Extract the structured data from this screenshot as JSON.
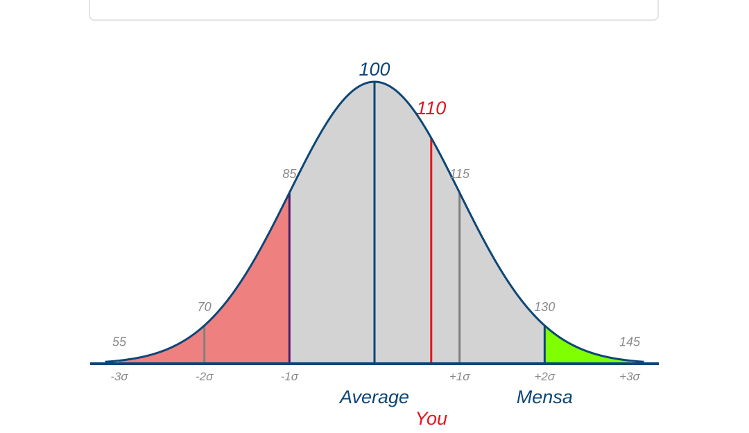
{
  "chart_data": {
    "type": "area",
    "distribution": "normal",
    "mean": 100,
    "sd": 15,
    "xlim": [
      55,
      145
    ],
    "iq_tick_labels": [
      {
        "value": 55,
        "label": "55"
      },
      {
        "value": 70,
        "label": "70"
      },
      {
        "value": 85,
        "label": "85"
      },
      {
        "value": 100,
        "label": "100"
      },
      {
        "value": 115,
        "label": "115"
      },
      {
        "value": 130,
        "label": "130"
      },
      {
        "value": 145,
        "label": "145"
      }
    ],
    "sigma_tick_labels": [
      {
        "value": 55,
        "label": "-3σ"
      },
      {
        "value": 70,
        "label": "-2σ"
      },
      {
        "value": 85,
        "label": "-1σ"
      },
      {
        "value": 115,
        "label": "+1σ"
      },
      {
        "value": 130,
        "label": "+2σ"
      },
      {
        "value": 145,
        "label": "+3σ"
      }
    ],
    "regions": [
      {
        "from": 55,
        "to": 85,
        "color": "#ef8080"
      },
      {
        "from": 85,
        "to": 130,
        "color": "#d3d3d3"
      },
      {
        "from": 130,
        "to": 145,
        "color": "#80ff00"
      }
    ],
    "markers": [
      {
        "value": 70,
        "color": "#808080"
      },
      {
        "value": 85,
        "color": "#4a1a6b"
      },
      {
        "value": 100,
        "color": "#0d4677",
        "label": "Average"
      },
      {
        "value": 110,
        "color": "#e8141e",
        "label": "You",
        "value_label": "110"
      },
      {
        "value": 115,
        "color": "#808080"
      },
      {
        "value": 130,
        "color": "#0d4677",
        "label": "Mensa"
      }
    ],
    "colors": {
      "curve": "#0d4677",
      "axis": "#0d4677",
      "you": "#e8141e",
      "tick_text": "#8a8a8a"
    }
  }
}
